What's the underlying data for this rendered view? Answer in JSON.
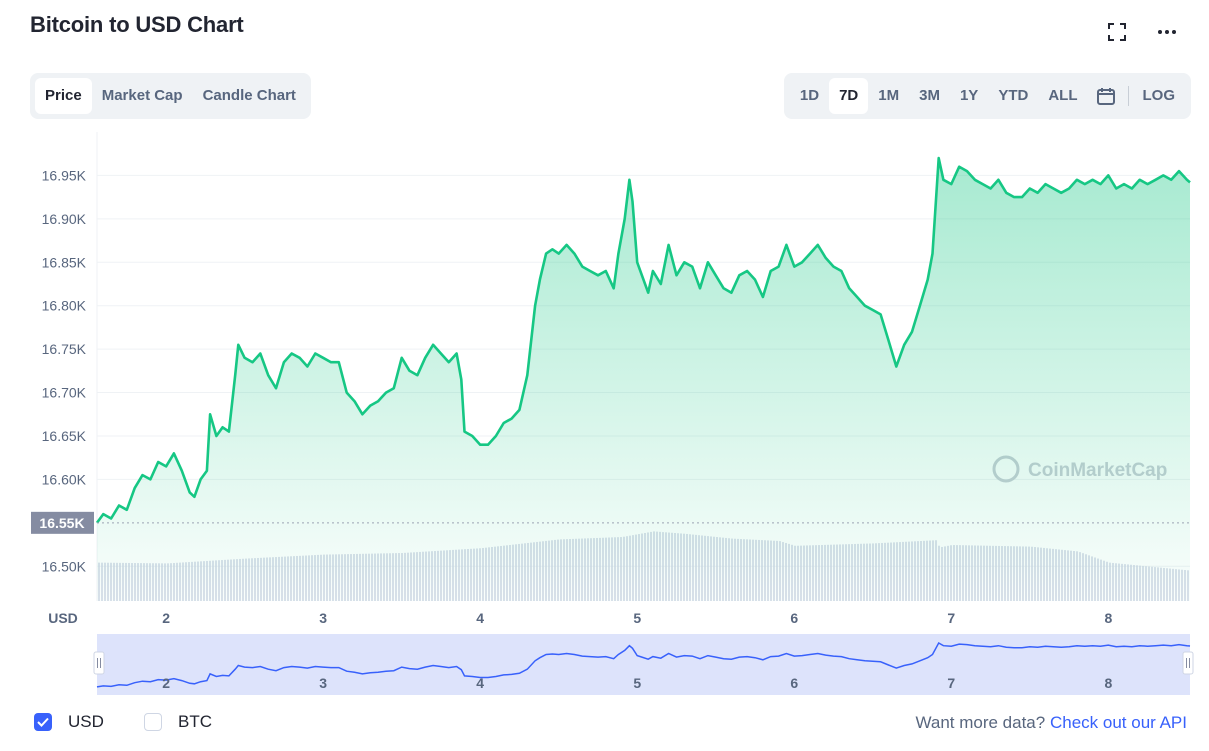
{
  "header": {
    "title": "Bitcoin to USD Chart",
    "expand_icon": "fullscreen-icon",
    "more_icon": "more-dots-icon"
  },
  "tabs": [
    {
      "label": "Price",
      "active": true
    },
    {
      "label": "Market Cap",
      "active": false
    },
    {
      "label": "Candle Chart",
      "active": false
    }
  ],
  "ranges": [
    {
      "label": "1D",
      "active": false
    },
    {
      "label": "7D",
      "active": true
    },
    {
      "label": "1M",
      "active": false
    },
    {
      "label": "3M",
      "active": false
    },
    {
      "label": "1Y",
      "active": false
    },
    {
      "label": "YTD",
      "active": false
    },
    {
      "label": "ALL",
      "active": false
    }
  ],
  "log_label": "LOG",
  "calendar_icon": "calendar-icon",
  "chart_data": {
    "type": "area",
    "currency_label": "USD",
    "watermark": "CoinMarketCap",
    "current_price_label": "16.55K",
    "current_price": 16550,
    "ylim": [
      16460,
      17000
    ],
    "y_ticks": [
      {
        "value": 16950,
        "label": "16.95K"
      },
      {
        "value": 16900,
        "label": "16.90K"
      },
      {
        "value": 16850,
        "label": "16.85K"
      },
      {
        "value": 16800,
        "label": "16.80K"
      },
      {
        "value": 16750,
        "label": "16.75K"
      },
      {
        "value": 16700,
        "label": "16.70K"
      },
      {
        "value": 16650,
        "label": "16.65K"
      },
      {
        "value": 16600,
        "label": "16.60K"
      },
      {
        "value": 16500,
        "label": "16.50K"
      }
    ],
    "xlim": [
      1.56,
      8.52
    ],
    "x_ticks": [
      {
        "value": 2,
        "label": "2"
      },
      {
        "value": 3,
        "label": "3"
      },
      {
        "value": 4,
        "label": "4"
      },
      {
        "value": 5,
        "label": "5"
      },
      {
        "value": 6,
        "label": "6"
      },
      {
        "value": 7,
        "label": "7"
      },
      {
        "value": 8,
        "label": "8"
      }
    ],
    "series": [
      {
        "color": "#16c784",
        "points": [
          [
            1.56,
            16550
          ],
          [
            1.6,
            16560
          ],
          [
            1.65,
            16555
          ],
          [
            1.7,
            16570
          ],
          [
            1.75,
            16565
          ],
          [
            1.8,
            16590
          ],
          [
            1.85,
            16605
          ],
          [
            1.9,
            16600
          ],
          [
            1.95,
            16620
          ],
          [
            2.0,
            16615
          ],
          [
            2.05,
            16630
          ],
          [
            2.1,
            16610
          ],
          [
            2.15,
            16585
          ],
          [
            2.18,
            16580
          ],
          [
            2.22,
            16600
          ],
          [
            2.26,
            16610
          ],
          [
            2.28,
            16675
          ],
          [
            2.32,
            16650
          ],
          [
            2.36,
            16660
          ],
          [
            2.4,
            16655
          ],
          [
            2.44,
            16720
          ],
          [
            2.46,
            16755
          ],
          [
            2.5,
            16740
          ],
          [
            2.55,
            16735
          ],
          [
            2.6,
            16745
          ],
          [
            2.65,
            16720
          ],
          [
            2.7,
            16705
          ],
          [
            2.75,
            16735
          ],
          [
            2.8,
            16745
          ],
          [
            2.85,
            16740
          ],
          [
            2.9,
            16730
          ],
          [
            2.95,
            16745
          ],
          [
            3.0,
            16740
          ],
          [
            3.05,
            16735
          ],
          [
            3.1,
            16735
          ],
          [
            3.15,
            16700
          ],
          [
            3.2,
            16690
          ],
          [
            3.25,
            16675
          ],
          [
            3.3,
            16685
          ],
          [
            3.35,
            16690
          ],
          [
            3.4,
            16700
          ],
          [
            3.45,
            16705
          ],
          [
            3.5,
            16740
          ],
          [
            3.55,
            16725
          ],
          [
            3.6,
            16720
          ],
          [
            3.65,
            16740
          ],
          [
            3.7,
            16755
          ],
          [
            3.75,
            16745
          ],
          [
            3.8,
            16735
          ],
          [
            3.85,
            16745
          ],
          [
            3.88,
            16715
          ],
          [
            3.9,
            16655
          ],
          [
            3.95,
            16650
          ],
          [
            4.0,
            16640
          ],
          [
            4.05,
            16640
          ],
          [
            4.1,
            16650
          ],
          [
            4.15,
            16665
          ],
          [
            4.2,
            16670
          ],
          [
            4.25,
            16680
          ],
          [
            4.3,
            16720
          ],
          [
            4.35,
            16800
          ],
          [
            4.38,
            16830
          ],
          [
            4.42,
            16860
          ],
          [
            4.46,
            16865
          ],
          [
            4.5,
            16860
          ],
          [
            4.55,
            16870
          ],
          [
            4.6,
            16860
          ],
          [
            4.65,
            16845
          ],
          [
            4.7,
            16840
          ],
          [
            4.75,
            16835
          ],
          [
            4.8,
            16840
          ],
          [
            4.85,
            16820
          ],
          [
            4.88,
            16860
          ],
          [
            4.92,
            16900
          ],
          [
            4.95,
            16945
          ],
          [
            4.97,
            16920
          ],
          [
            5.0,
            16850
          ],
          [
            5.03,
            16835
          ],
          [
            5.07,
            16815
          ],
          [
            5.1,
            16840
          ],
          [
            5.15,
            16825
          ],
          [
            5.2,
            16870
          ],
          [
            5.25,
            16835
          ],
          [
            5.3,
            16850
          ],
          [
            5.35,
            16845
          ],
          [
            5.4,
            16820
          ],
          [
            5.45,
            16850
          ],
          [
            5.5,
            16835
          ],
          [
            5.55,
            16820
          ],
          [
            5.6,
            16815
          ],
          [
            5.65,
            16835
          ],
          [
            5.7,
            16840
          ],
          [
            5.75,
            16830
          ],
          [
            5.8,
            16810
          ],
          [
            5.85,
            16840
          ],
          [
            5.9,
            16845
          ],
          [
            5.95,
            16870
          ],
          [
            6.0,
            16845
          ],
          [
            6.05,
            16850
          ],
          [
            6.1,
            16860
          ],
          [
            6.15,
            16870
          ],
          [
            6.2,
            16855
          ],
          [
            6.25,
            16845
          ],
          [
            6.3,
            16840
          ],
          [
            6.35,
            16820
          ],
          [
            6.4,
            16810
          ],
          [
            6.45,
            16800
          ],
          [
            6.5,
            16795
          ],
          [
            6.55,
            16790
          ],
          [
            6.6,
            16760
          ],
          [
            6.65,
            16730
          ],
          [
            6.7,
            16755
          ],
          [
            6.75,
            16770
          ],
          [
            6.8,
            16800
          ],
          [
            6.85,
            16830
          ],
          [
            6.88,
            16860
          ],
          [
            6.92,
            16970
          ],
          [
            6.95,
            16945
          ],
          [
            7.0,
            16940
          ],
          [
            7.05,
            16960
          ],
          [
            7.1,
            16955
          ],
          [
            7.15,
            16945
          ],
          [
            7.2,
            16940
          ],
          [
            7.25,
            16935
          ],
          [
            7.3,
            16945
          ],
          [
            7.35,
            16930
          ],
          [
            7.4,
            16925
          ],
          [
            7.45,
            16925
          ],
          [
            7.5,
            16935
          ],
          [
            7.55,
            16930
          ],
          [
            7.6,
            16940
          ],
          [
            7.65,
            16935
          ],
          [
            7.7,
            16930
          ],
          [
            7.75,
            16935
          ],
          [
            7.8,
            16945
          ],
          [
            7.85,
            16940
          ],
          [
            7.9,
            16945
          ],
          [
            7.95,
            16940
          ],
          [
            8.0,
            16950
          ],
          [
            8.05,
            16935
          ],
          [
            8.1,
            16940
          ],
          [
            8.15,
            16935
          ],
          [
            8.2,
            16945
          ],
          [
            8.25,
            16940
          ],
          [
            8.3,
            16945
          ],
          [
            8.35,
            16950
          ],
          [
            8.4,
            16945
          ],
          [
            8.45,
            16955
          ],
          [
            8.5,
            16945
          ],
          [
            8.52,
            16942
          ]
        ]
      }
    ],
    "volume": [
      [
        1.56,
        0.48
      ],
      [
        2.0,
        0.47
      ],
      [
        2.5,
        0.53
      ],
      [
        3.0,
        0.58
      ],
      [
        3.5,
        0.6
      ],
      [
        4.0,
        0.66
      ],
      [
        4.5,
        0.77
      ],
      [
        4.9,
        0.8
      ],
      [
        5.1,
        0.87
      ],
      [
        5.3,
        0.84
      ],
      [
        5.6,
        0.78
      ],
      [
        5.9,
        0.75
      ],
      [
        6.0,
        0.69
      ],
      [
        6.5,
        0.72
      ],
      [
        6.9,
        0.76
      ],
      [
        6.92,
        0.67
      ],
      [
        7.0,
        0.7
      ],
      [
        7.5,
        0.68
      ],
      [
        7.8,
        0.62
      ],
      [
        8.0,
        0.48
      ],
      [
        8.52,
        0.38
      ]
    ],
    "navigator": {
      "line_color": "#3861fb",
      "fill_color": "#dde3fb"
    }
  },
  "footer": {
    "usd_label": "USD",
    "usd_checked": true,
    "btc_label": "BTC",
    "btc_checked": false,
    "api_prefix": "Want more data?",
    "api_link": "Check out our API"
  }
}
